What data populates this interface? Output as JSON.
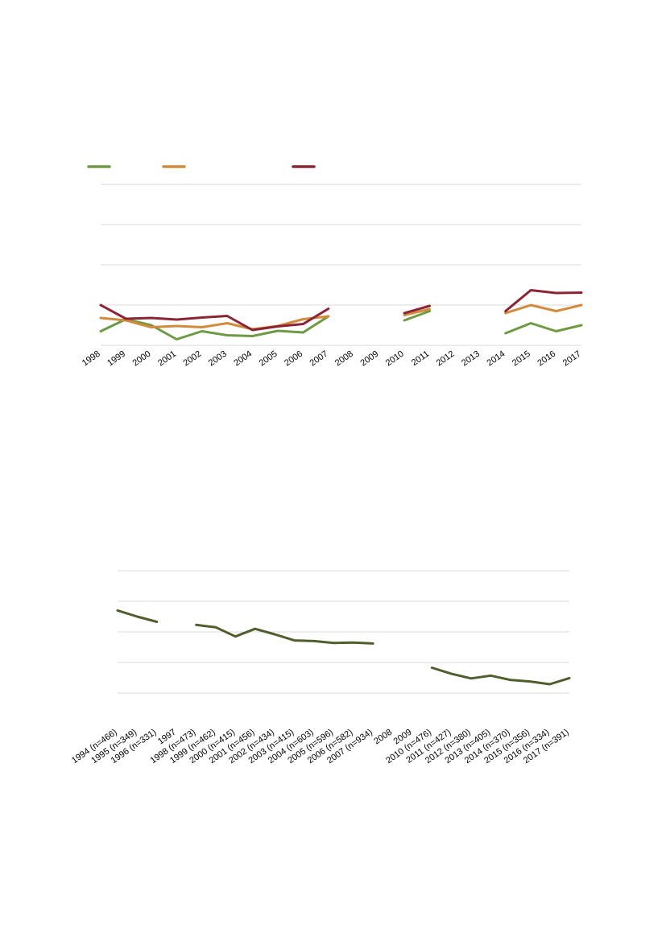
{
  "chart_data": [
    {
      "type": "line",
      "categories": [
        "1998",
        "1999",
        "2000",
        "2001",
        "2002",
        "2003",
        "2004",
        "2005",
        "2006",
        "2007",
        "2008",
        "2009",
        "2010",
        "2011",
        "2012",
        "2013",
        "2014",
        "2015",
        "2016",
        "2017"
      ],
      "ylim": [
        0,
        40
      ],
      "grid": true,
      "legend_position": "top-left",
      "series": [
        {
          "color": "#6e9a43",
          "values": [
            3.5,
            6.5,
            5,
            1.5,
            3.5,
            2.5,
            2.3,
            3.6,
            3.2,
            7.2,
            null,
            null,
            6.2,
            8.5,
            null,
            null,
            3,
            5.5,
            3.5,
            5
          ]
        },
        {
          "color": "#d28a3c",
          "values": [
            6.8,
            6.2,
            4.5,
            4.8,
            4.5,
            5.5,
            4,
            4.8,
            6.5,
            7.2,
            null,
            null,
            7.5,
            9,
            null,
            null,
            8,
            10,
            8.5,
            10
          ]
        },
        {
          "color": "#8b2535",
          "values": [
            10,
            6.6,
            6.8,
            6.4,
            6.9,
            7.3,
            3.8,
            4.7,
            5.3,
            9.1,
            null,
            null,
            8,
            9.8,
            null,
            null,
            8.5,
            13.7,
            13,
            13.1
          ]
        }
      ]
    },
    {
      "type": "line",
      "categories": [
        "1994 (n=466)",
        "1995 (n=349)",
        "1996 (n=331)",
        "1997",
        "1998 (n=473)",
        "1999 (n=462)",
        "2000 (n=415)",
        "2001 (n=456)",
        "2002 (n=434)",
        "2003 (n=415)",
        "2004 (n=603)",
        "2005 (n=596)",
        "2006 (n=582)",
        "2007 (n=934)",
        "2008",
        "2009",
        "2010 (n=476)",
        "2011 (n=427)",
        "2012 (n=380)",
        "2013 (n=405)",
        "2014 (n=370)",
        "2015 (n=356)",
        "2016 (n=334)",
        "2017 (n=391)"
      ],
      "ylim": [
        0,
        5
      ],
      "grid": true,
      "series": [
        {
          "color": "#4f5e2c",
          "values": [
            3.7,
            3.5,
            3.33,
            null,
            3.23,
            3.15,
            2.85,
            3.1,
            2.92,
            2.72,
            2.7,
            2.64,
            2.65,
            2.62,
            null,
            null,
            1.83,
            1.63,
            1.48,
            1.57,
            1.43,
            1.38,
            1.29,
            1.49
          ]
        }
      ]
    }
  ]
}
